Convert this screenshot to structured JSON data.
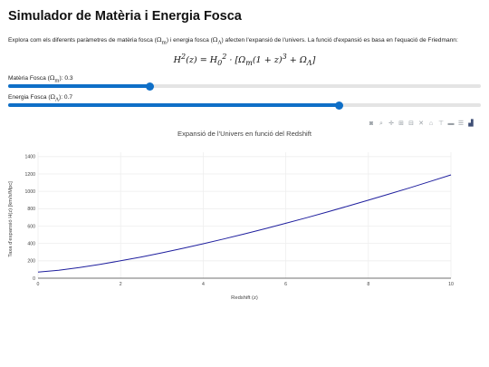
{
  "page": {
    "title": "Simulador de Matèria i Energia Fosca",
    "intro_text": "Explora com els diferents paràmetres de matèria fosca (Ωm) i energia fosca (ΩΛ) afecten l'expansió de l'univers. La funció d'expansió es basa en l'equació de Friedmann:",
    "formula": "H²(z) = H₀² · [Ωm(1 + z)³ + ΩΛ]"
  },
  "sliders": {
    "matter": {
      "label": "Matèria Fosca (Ωm): 0.3",
      "value": 0.3,
      "min": 0,
      "max": 1
    },
    "energy": {
      "label": "Energia Fosca (ΩΛ): 0.7",
      "value": 0.7,
      "min": 0,
      "max": 1
    }
  },
  "modebar": {
    "icons": [
      "camera-icon",
      "zoom-icon",
      "pan-icon",
      "zoom-in-icon",
      "zoom-out-icon",
      "autoscale-icon",
      "reset-axes-icon",
      "spike-lines-icon",
      "hover-closest-icon",
      "hover-compare-icon",
      "plotly-logo-icon"
    ]
  },
  "chart_data": {
    "type": "line",
    "title": "Expansió de l'Univers en funció del Redshift",
    "xlabel": "Redshift (z)",
    "ylabel": "Taxa d'expansió H(z) [km/s/Mpc]",
    "xlim": [
      0,
      10
    ],
    "ylim": [
      0,
      1450
    ],
    "x_ticks": [
      0,
      2,
      4,
      6,
      8,
      10
    ],
    "y_ticks": [
      0,
      200,
      400,
      600,
      800,
      1000,
      1200,
      1400
    ],
    "grid": true,
    "line_color": "#1f1f9e",
    "series": [
      {
        "x": [
          0,
          0.5,
          1,
          1.5,
          2,
          2.5,
          3,
          3.5,
          4,
          4.5,
          5,
          5.5,
          6,
          6.5,
          7,
          7.5,
          8,
          8.5,
          9,
          9.5,
          10
        ],
        "values": [
          70,
          92,
          123,
          160,
          200,
          244,
          292,
          343,
          396,
          452,
          510,
          570,
          632,
          696,
          762,
          829,
          898,
          969,
          1040,
          1114,
          1189
        ]
      }
    ]
  }
}
